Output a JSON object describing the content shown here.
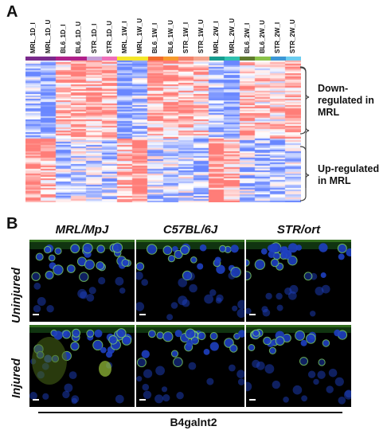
{
  "panel_a": {
    "label": "A",
    "columns": [
      {
        "label": "MRL_1D_I",
        "color": "#7a2a8c"
      },
      {
        "label": "MRL_1D_U",
        "color": "#7a2a8c"
      },
      {
        "label": "BL6_1D_I",
        "color": "#b0208a"
      },
      {
        "label": "BL6_1D_U",
        "color": "#b0208a"
      },
      {
        "label": "STR_1D_I",
        "color": "#c59ed7"
      },
      {
        "label": "STR_1D_U",
        "color": "#ef6fb9"
      },
      {
        "label": "MRL_1W_I",
        "color": "#f3e62a"
      },
      {
        "label": "MRL_1W_U",
        "color": "#f3e62a"
      },
      {
        "label": "BL6_1W_I",
        "color": "#f26b2d"
      },
      {
        "label": "BL6_1W_U",
        "color": "#f79a2c"
      },
      {
        "label": "STR_1W_I",
        "color": "#f3826a"
      },
      {
        "label": "STR_1W_U",
        "color": "#f4a48d"
      },
      {
        "label": "MRL_2W_I",
        "color": "#169c8f"
      },
      {
        "label": "MRL_2W_U",
        "color": "#2fc1b0"
      },
      {
        "label": "BL6_2W_I",
        "color": "#5f7a2e"
      },
      {
        "label": "BL6_2W_U",
        "color": "#8bc34a"
      },
      {
        "label": "STR_2W_I",
        "color": "#3d97d6"
      },
      {
        "label": "STR_2W_U",
        "color": "#6ccdf0"
      }
    ],
    "brackets": [
      {
        "text": "Down-\nregulated in\nMRL"
      },
      {
        "text": "Up-regulated\nin MRL"
      }
    ]
  },
  "panel_b": {
    "label": "B",
    "conditions": [
      "MRL/MpJ",
      "C57BL/6J",
      "STR/ort"
    ],
    "rows": [
      "Uninjured",
      "Injured"
    ],
    "gene": "B4galnt2"
  }
}
